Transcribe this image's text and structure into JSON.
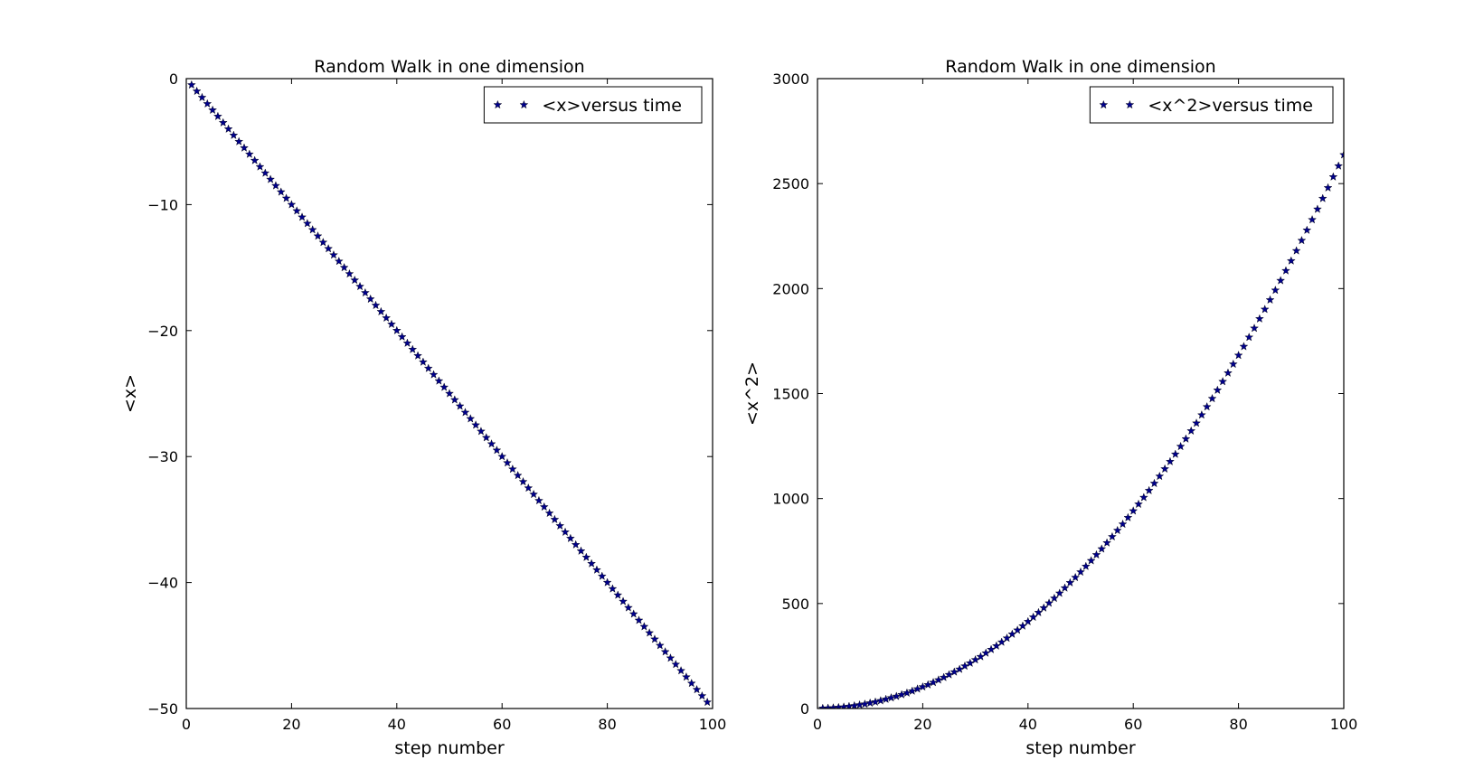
{
  "chart_data": [
    {
      "type": "scatter",
      "title": "Random Walk in one dimension",
      "xlabel": "step number",
      "ylabel": "<x>",
      "xlim": [
        0,
        100
      ],
      "ylim": [
        -50,
        0
      ],
      "xticks": [
        0,
        20,
        40,
        60,
        80,
        100
      ],
      "xtick_labels": [
        "0",
        "20",
        "40",
        "60",
        "80",
        "100"
      ],
      "yticks": [
        0,
        -10,
        -20,
        -30,
        -40,
        -50
      ],
      "ytick_labels": [
        "0",
        "−10",
        "−20",
        "−30",
        "−40",
        "−50"
      ],
      "grid": false,
      "legend": "top-right",
      "marker": "star",
      "color": "#00008b",
      "series": [
        {
          "name": "<x>versus time",
          "x": [
            1,
            2,
            3,
            4,
            5,
            6,
            7,
            8,
            9,
            10,
            11,
            12,
            13,
            14,
            15,
            16,
            17,
            18,
            19,
            20,
            21,
            22,
            23,
            24,
            25,
            26,
            27,
            28,
            29,
            30,
            31,
            32,
            33,
            34,
            35,
            36,
            37,
            38,
            39,
            40,
            41,
            42,
            43,
            44,
            45,
            46,
            47,
            48,
            49,
            50,
            51,
            52,
            53,
            54,
            55,
            56,
            57,
            58,
            59,
            60,
            61,
            62,
            63,
            64,
            65,
            66,
            67,
            68,
            69,
            70,
            71,
            72,
            73,
            74,
            75,
            76,
            77,
            78,
            79,
            80,
            81,
            82,
            83,
            84,
            85,
            86,
            87,
            88,
            89,
            90,
            91,
            92,
            93,
            94,
            95,
            96,
            97,
            98,
            99
          ],
          "y": [
            -0.5,
            -1.0,
            -1.5,
            -2.0,
            -2.5,
            -3.0,
            -3.5,
            -4.0,
            -4.5,
            -5.0,
            -5.5,
            -6.0,
            -6.5,
            -7.0,
            -7.5,
            -8.0,
            -8.5,
            -9.0,
            -9.5,
            -10.0,
            -10.5,
            -11.0,
            -11.5,
            -12.0,
            -12.5,
            -13.0,
            -13.5,
            -14.0,
            -14.5,
            -15.0,
            -15.5,
            -16.0,
            -16.5,
            -17.0,
            -17.5,
            -18.0,
            -18.5,
            -19.0,
            -19.5,
            -20.0,
            -20.5,
            -21.0,
            -21.5,
            -22.0,
            -22.5,
            -23.0,
            -23.5,
            -24.0,
            -24.5,
            -25.0,
            -25.5,
            -26.0,
            -26.5,
            -27.0,
            -27.5,
            -28.0,
            -28.5,
            -29.0,
            -29.5,
            -30.0,
            -30.5,
            -31.0,
            -31.5,
            -32.0,
            -32.5,
            -33.0,
            -33.5,
            -34.0,
            -34.5,
            -35.0,
            -35.5,
            -36.0,
            -36.5,
            -37.0,
            -37.5,
            -38.0,
            -38.5,
            -39.0,
            -39.5,
            -40.0,
            -40.5,
            -41.0,
            -41.5,
            -42.0,
            -42.5,
            -43.0,
            -43.5,
            -44.0,
            -44.5,
            -45.0,
            -45.5,
            -46.0,
            -46.5,
            -47.0,
            -47.5,
            -48.0,
            -48.5,
            -49.0,
            -49.5
          ]
        }
      ]
    },
    {
      "type": "scatter",
      "title": "Random Walk in one dimension",
      "xlabel": "step number",
      "ylabel": "<x^2>",
      "xlim": [
        0,
        100
      ],
      "ylim": [
        0,
        3000
      ],
      "xticks": [
        0,
        20,
        40,
        60,
        80,
        100
      ],
      "xtick_labels": [
        "0",
        "20",
        "40",
        "60",
        "80",
        "100"
      ],
      "yticks": [
        0,
        500,
        1000,
        1500,
        2000,
        2500,
        3000
      ],
      "ytick_labels": [
        "0",
        "500",
        "1000",
        "1500",
        "2000",
        "2500",
        "3000"
      ],
      "grid": false,
      "legend": "top-right",
      "marker": "star",
      "color": "#00008b",
      "series": [
        {
          "name": "<x^2>versus time",
          "x": [
            1,
            2,
            3,
            4,
            5,
            6,
            7,
            8,
            9,
            10,
            11,
            12,
            13,
            14,
            15,
            16,
            17,
            18,
            19,
            20,
            21,
            22,
            23,
            24,
            25,
            26,
            27,
            28,
            29,
            30,
            31,
            32,
            33,
            34,
            35,
            36,
            37,
            38,
            39,
            40,
            41,
            42,
            43,
            44,
            45,
            46,
            47,
            48,
            49,
            50,
            51,
            52,
            53,
            54,
            55,
            56,
            57,
            58,
            59,
            60,
            61,
            62,
            63,
            64,
            65,
            66,
            67,
            68,
            69,
            70,
            71,
            72,
            73,
            74,
            75,
            76,
            77,
            78,
            79,
            80,
            81,
            82,
            83,
            84,
            85,
            86,
            87,
            88,
            89,
            90,
            91,
            92,
            93,
            94,
            95,
            96,
            97,
            98,
            99,
            100
          ],
          "y": [
            1,
            2,
            3,
            5,
            7,
            10,
            13,
            17,
            21,
            26,
            31,
            37,
            44,
            51,
            58,
            66,
            74,
            83,
            93,
            103,
            113,
            124,
            136,
            148,
            161,
            174,
            187,
            202,
            216,
            232,
            247,
            264,
            281,
            298,
            316,
            335,
            354,
            373,
            393,
            414,
            435,
            457,
            479,
            502,
            525,
            549,
            574,
            599,
            624,
            650,
            677,
            704,
            732,
            760,
            789,
            818,
            848,
            878,
            909,
            941,
            973,
            1005,
            1038,
            1072,
            1106,
            1141,
            1176,
            1211,
            1248,
            1284,
            1322,
            1359,
            1398,
            1437,
            1476,
            1516,
            1557,
            1598,
            1640,
            1682,
            1724,
            1768,
            1811,
            1856,
            1901,
            1946,
            1992,
            2038,
            2085,
            2132,
            2180,
            2229,
            2278,
            2328,
            2378,
            2429,
            2480,
            2532,
            2584,
            2637
          ]
        }
      ]
    }
  ]
}
